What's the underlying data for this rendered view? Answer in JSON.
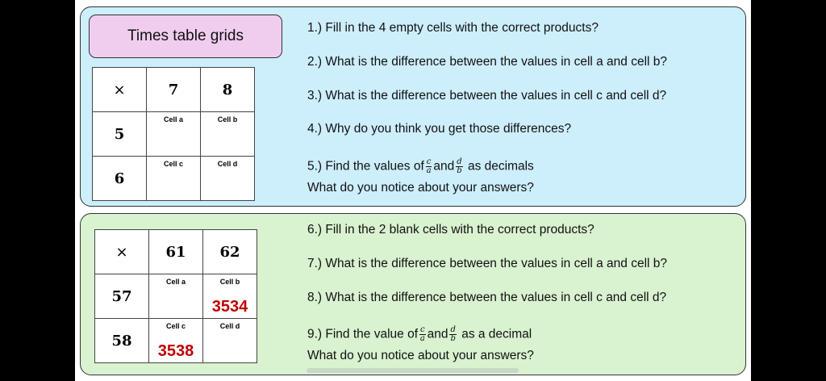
{
  "title": "Times table grids",
  "grid1": {
    "corner": "×",
    "cols": [
      "7",
      "8"
    ],
    "rows": [
      "5",
      "6"
    ],
    "cell_labels": [
      "Cell a",
      "Cell b",
      "Cell c",
      "Cell d"
    ]
  },
  "grid2": {
    "corner": "×",
    "cols": [
      "61",
      "62"
    ],
    "rows": [
      "57",
      "58"
    ],
    "cell_labels": [
      "Cell a",
      "Cell b",
      "Cell c",
      "Cell d"
    ],
    "cell_b_value": "3534",
    "cell_c_value": "3538"
  },
  "questions1": {
    "q1": "1.) Fill in the 4 empty cells with the correct products?",
    "q2": "2.) What is the difference between the values in cell a and cell b?",
    "q3": "3.) What is the difference between the values in cell c and cell d?",
    "q4": "4.) Why do you think you get those differences?",
    "q5_pre": "5.) Find the values of",
    "q5_mid": "and",
    "q5_post": "as decimals",
    "q5_line2": "What do you notice about your answers?"
  },
  "questions2": {
    "q6": "6.) Fill in the 2 blank cells with the correct products?",
    "q7": "7.) What is the difference between the values in cell a and cell b?",
    "q8": "8.) What is the difference between the values in cell c and cell d?",
    "q9_pre": "9.) Find the value of",
    "q9_mid": "and",
    "q9_post": "as a decimal",
    "q9_line2": "What do you notice about your answers?"
  },
  "fractions": {
    "c": "c",
    "a": "a",
    "d": "d",
    "b": "b"
  },
  "colors": {
    "panel1": "#cdeefb",
    "panel2": "#d9f2d0",
    "title_box": "#f0cdee",
    "answer_red": "#c00000"
  }
}
